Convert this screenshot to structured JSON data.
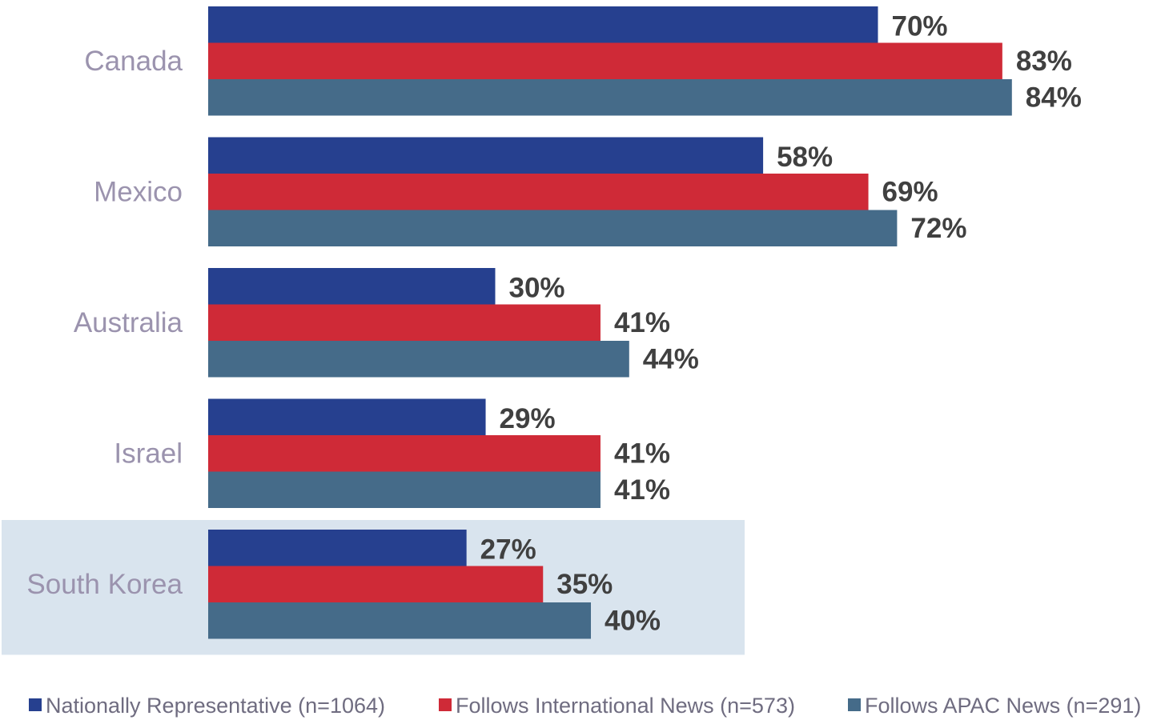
{
  "chart_data": {
    "type": "bar",
    "orientation": "horizontal",
    "categories": [
      "Canada",
      "Mexico",
      "Australia",
      "Israel",
      "South Korea"
    ],
    "series": [
      {
        "name": "Nationally Representative (n=1064)",
        "color": "#26408f",
        "values": [
          70,
          58,
          30,
          29,
          27
        ],
        "labels": [
          "70%",
          "58%",
          "30%",
          "29%",
          "27%"
        ]
      },
      {
        "name": "Follows International News (n=573)",
        "color": "#cf2a37",
        "values": [
          83,
          69,
          41,
          41,
          35
        ],
        "labels": [
          "83%",
          "69%",
          "41%",
          "41%",
          "35%"
        ]
      },
      {
        "name": "Follows APAC News (n=291)",
        "color": "#456b89",
        "values": [
          84,
          72,
          44,
          41,
          40
        ],
        "labels": [
          "84%",
          "72%",
          "44%",
          "41%",
          "40%"
        ]
      }
    ],
    "highlighted_category": "South Korea",
    "highlight_color": "#d9e4ee",
    "legend_position": "bottom",
    "grid": false,
    "xlim": [
      0,
      100
    ]
  }
}
